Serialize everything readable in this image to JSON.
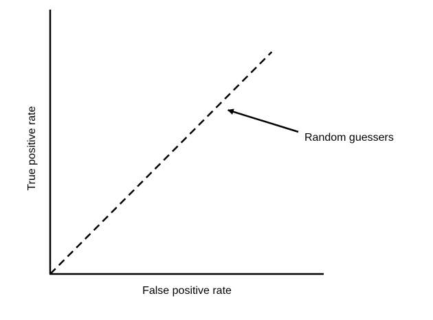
{
  "chart_data": {
    "type": "line",
    "title": "",
    "xlabel": "False positive rate",
    "ylabel": "True positive rate",
    "xlim": [
      0,
      1
    ],
    "ylim": [
      0,
      1
    ],
    "grid": false,
    "ticks": false,
    "series": [
      {
        "x": [
          0,
          0.81
        ],
        "y": [
          0,
          0.84
        ],
        "style": "dashed",
        "color": "#000000"
      }
    ],
    "annotations": [
      {
        "text": "Random guessers",
        "points_to": {
          "x": 0.65,
          "y": 0.62
        },
        "arrow": true
      }
    ]
  }
}
